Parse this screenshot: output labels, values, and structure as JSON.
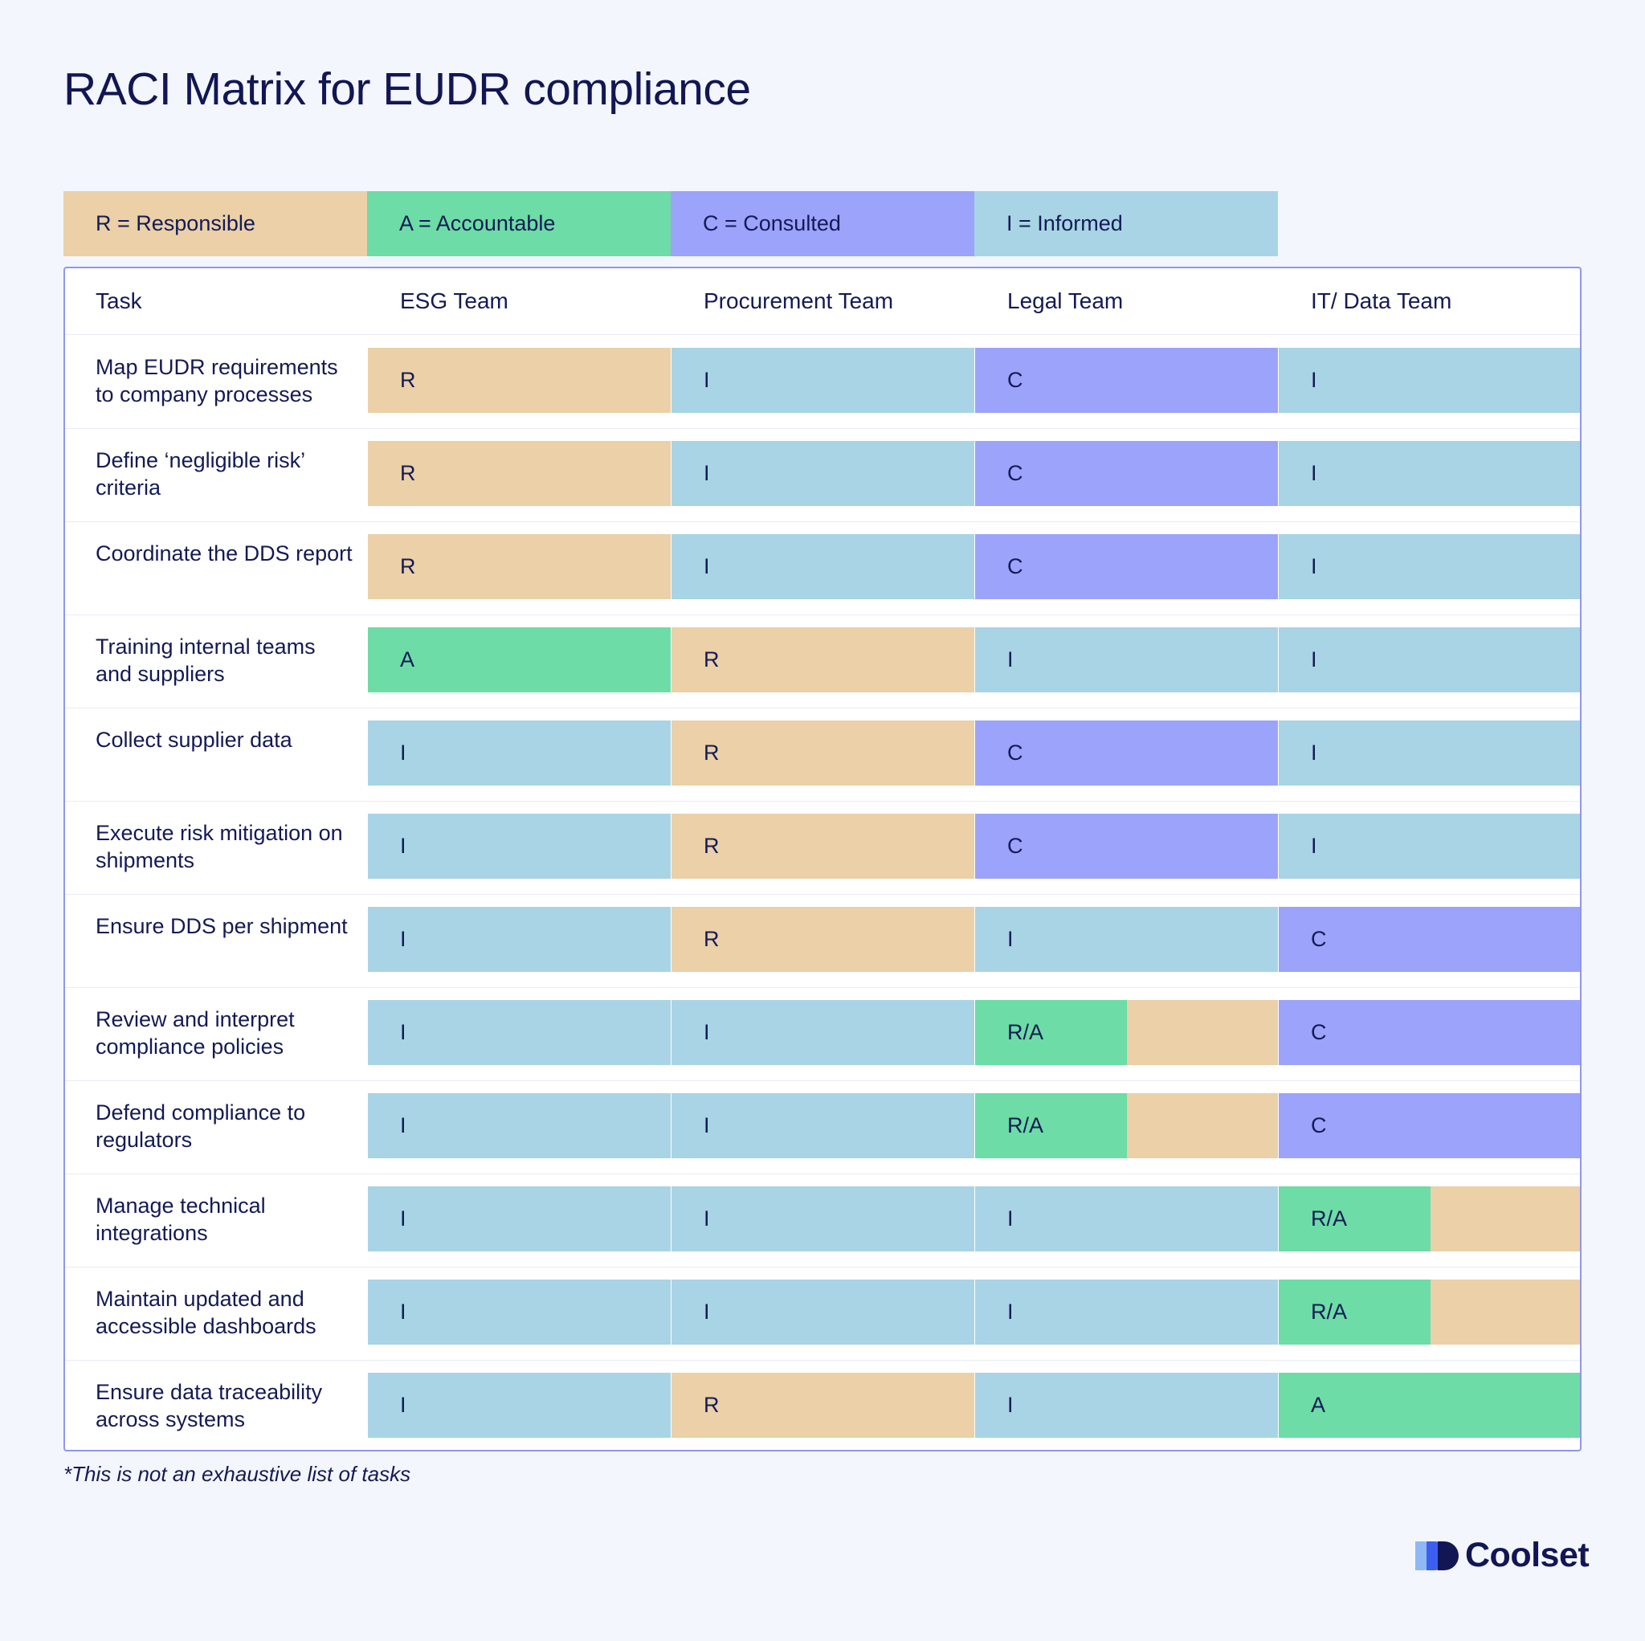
{
  "title": "RACI Matrix for EUDR compliance",
  "colors": {
    "R": "#ebd0a8",
    "A": "#6ddca6",
    "C": "#9ca3fb",
    "I": "#a8d4e6",
    "background": "#f3f6fd",
    "text": "#141a55",
    "border": "#8f96f0"
  },
  "legend": [
    {
      "key": "R",
      "label": "R = Responsible"
    },
    {
      "key": "A",
      "label": "A = Accountable"
    },
    {
      "key": "C",
      "label": "C = Consulted"
    },
    {
      "key": "I",
      "label": "I = Informed"
    }
  ],
  "columns": [
    "Task",
    "ESG Team",
    "Procurement Team",
    "Legal Team",
    "IT/ Data Team"
  ],
  "rows": [
    {
      "task": "Map EUDR requirements to company processes",
      "values": [
        "R",
        "I",
        "C",
        "I"
      ]
    },
    {
      "task": "Define ‘negligible risk’ criteria",
      "values": [
        "R",
        "I",
        "C",
        "I"
      ]
    },
    {
      "task": "Coordinate the DDS report",
      "values": [
        "R",
        "I",
        "C",
        "I"
      ]
    },
    {
      "task": "Training internal teams and suppliers",
      "values": [
        "A",
        "R",
        "I",
        "I"
      ]
    },
    {
      "task": "Collect supplier data",
      "values": [
        "I",
        "R",
        "C",
        "I"
      ]
    },
    {
      "task": "Execute risk mitigation on shipments",
      "values": [
        "I",
        "R",
        "C",
        "I"
      ]
    },
    {
      "task": "Ensure DDS per shipment",
      "values": [
        "I",
        "R",
        "I",
        "C"
      ]
    },
    {
      "task": "Review and interpret compliance policies",
      "values": [
        "I",
        "I",
        "R/A",
        "C"
      ]
    },
    {
      "task": "Defend compliance to regulators",
      "values": [
        "I",
        "I",
        "R/A",
        "C"
      ]
    },
    {
      "task": "Manage technical integrations",
      "values": [
        "I",
        "I",
        "I",
        "R/A"
      ]
    },
    {
      "task": "Maintain updated and accessible dashboards",
      "values": [
        "I",
        "I",
        "I",
        "R/A"
      ]
    },
    {
      "task": "Ensure data traceability across systems",
      "values": [
        "I",
        "R",
        "I",
        "A"
      ]
    }
  ],
  "footnote": "*This is not an exhaustive list of tasks",
  "brand": {
    "name": "Coolset",
    "icon": "coolset-logo-icon"
  }
}
